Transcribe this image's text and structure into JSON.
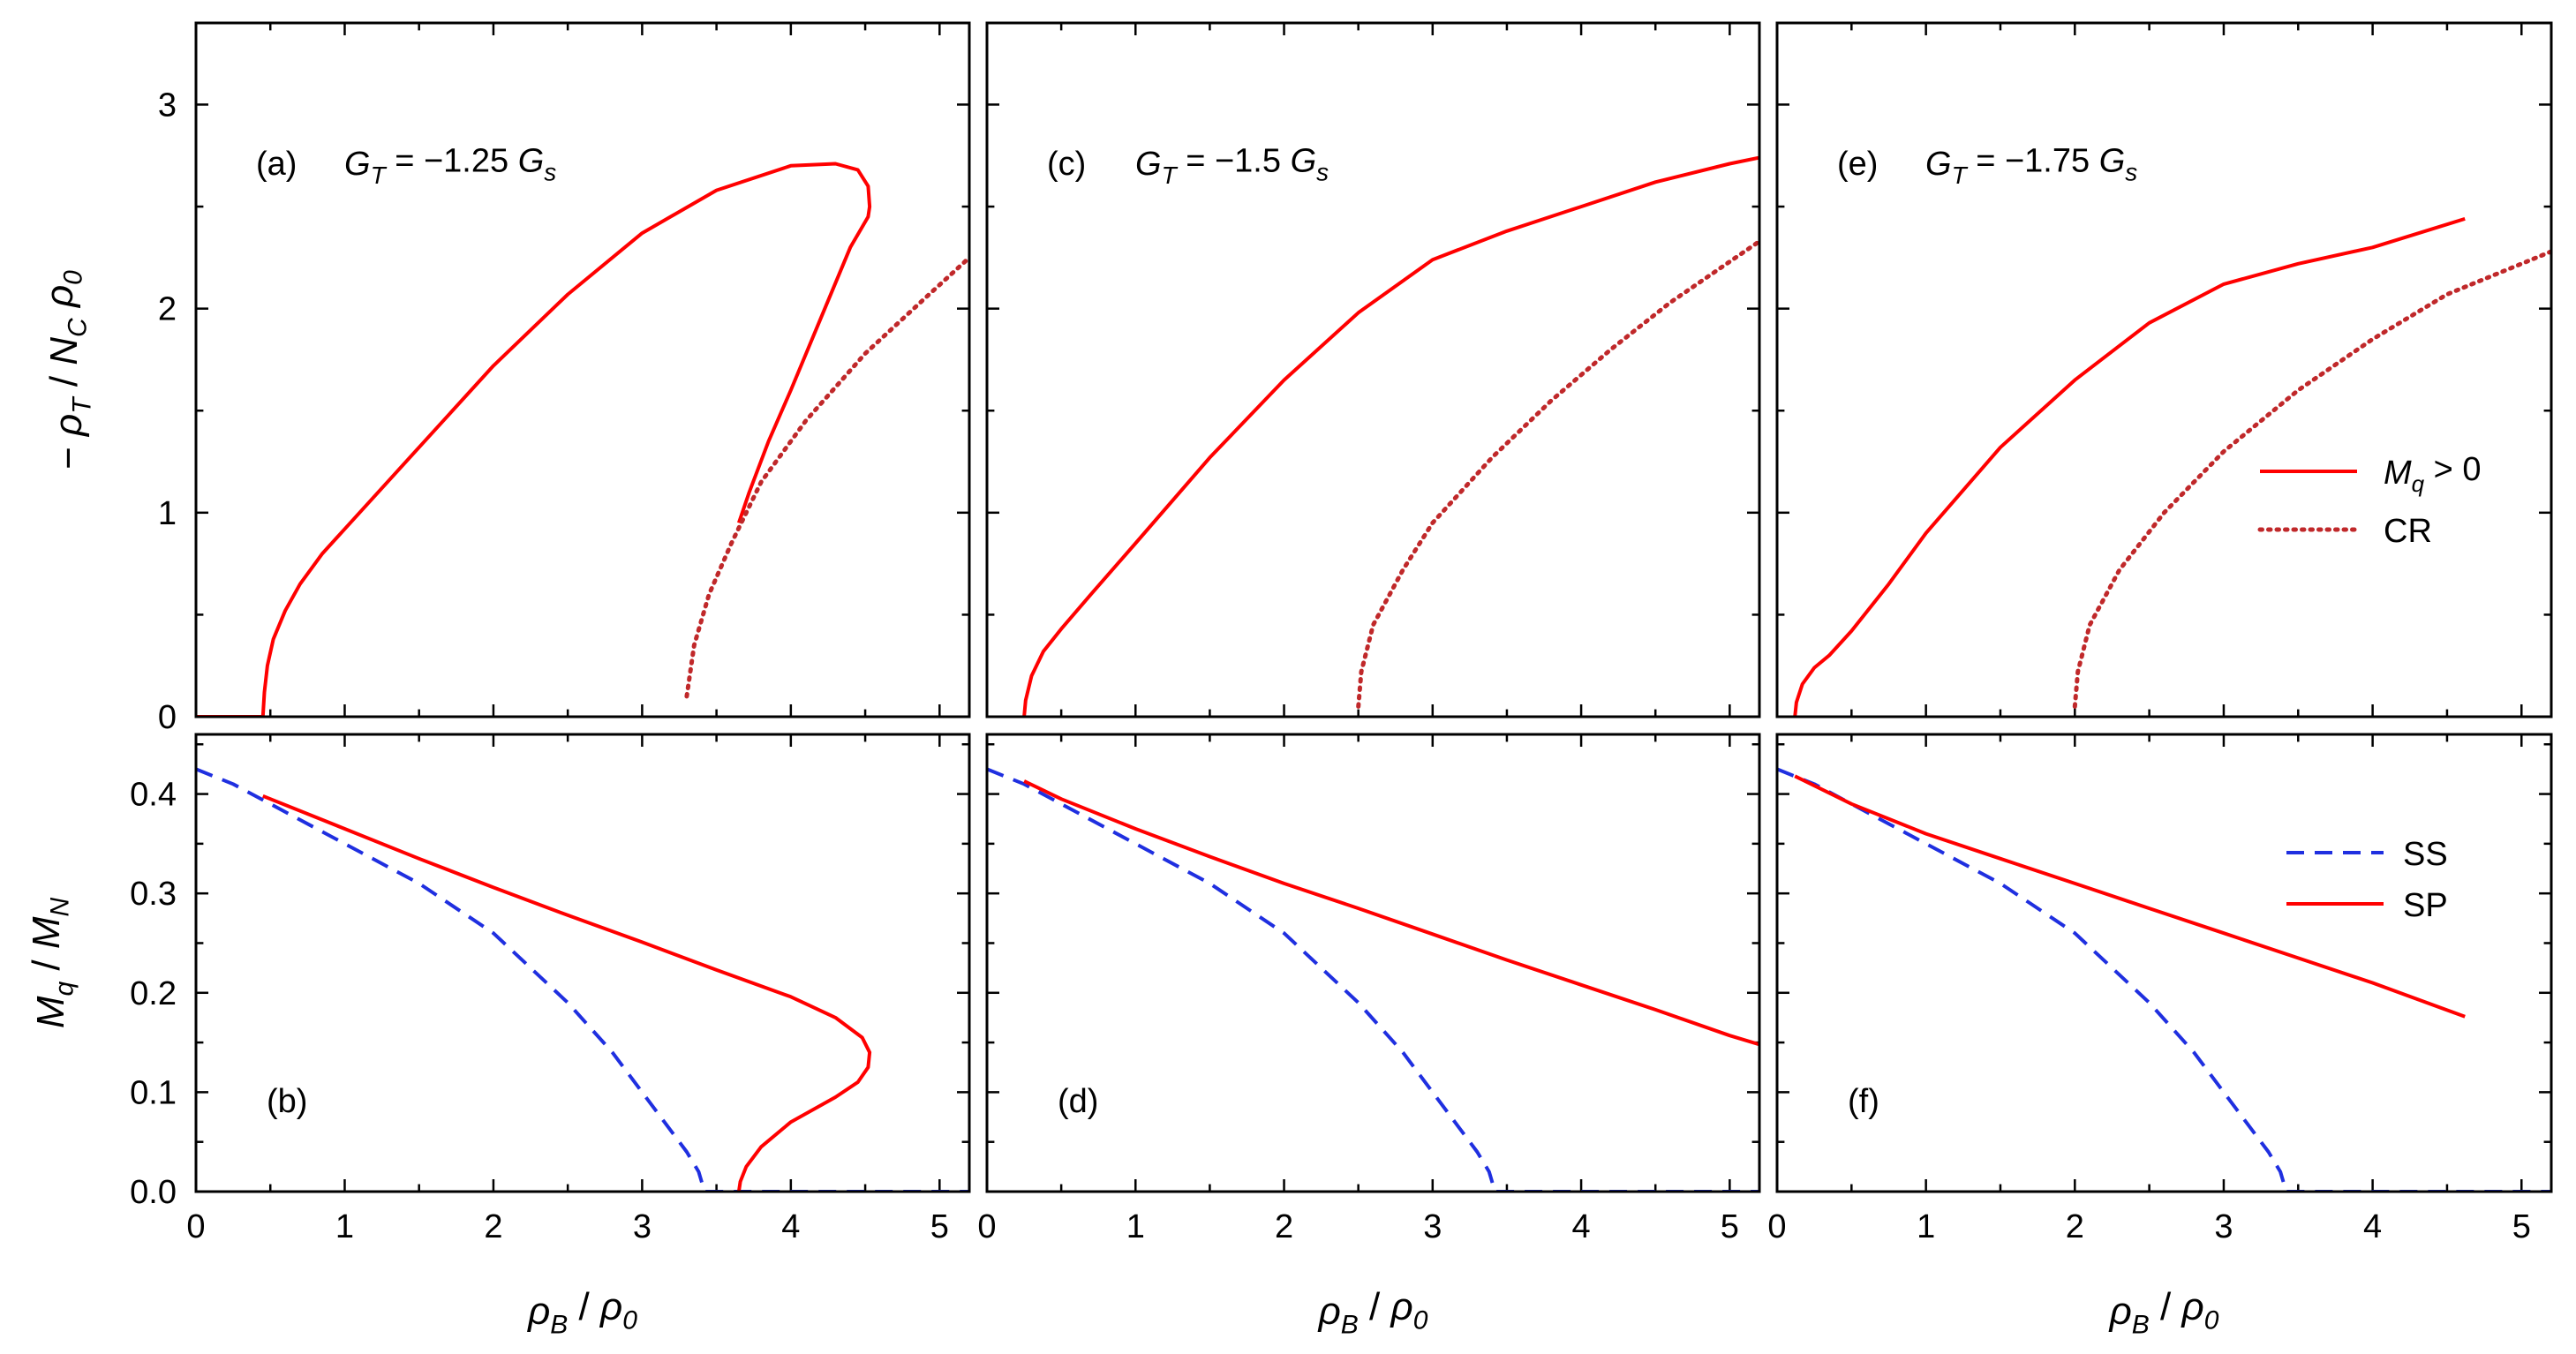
{
  "chart_data": {
    "type": "line",
    "colors": {
      "mq_solid": "#ff0000",
      "cr_dotted": "#c0282a",
      "ss_dashed": "#1f2fe0",
      "sp_solid": "#ff0000"
    },
    "x_axis": {
      "label": "ρB / ρ0",
      "label_parts": {
        "sym": "ρ",
        "sub": "B",
        "sep": " / ",
        "sym2": "ρ",
        "sub2": "0"
      },
      "range": [
        0,
        5.2
      ],
      "ticks": [
        "0",
        "1",
        "2",
        "3",
        "4",
        "5"
      ]
    },
    "top_y_axis": {
      "label": "− ρT / NC ρ0",
      "label_parts": {
        "minus": "− ",
        "sym": "ρ",
        "sub": "T",
        "sep": " / ",
        "sym2": "N",
        "sub2": "C",
        "sym3": " ρ",
        "sub3": "0"
      },
      "range": [
        0,
        3.4
      ],
      "ticks": [
        "0",
        "1",
        "2",
        "3"
      ]
    },
    "bottom_y_axis": {
      "label": "Mq / MN",
      "label_parts": {
        "sym": "M",
        "sub": "q",
        "sep": " / ",
        "sym2": "M",
        "sub2": "N"
      },
      "range": [
        0,
        0.46
      ],
      "ticks": [
        "0.0",
        "0.1",
        "0.2",
        "0.3",
        "0.4"
      ]
    },
    "top_legend": [
      {
        "name": "Mq > 0",
        "sym": "M",
        "sub": "q",
        "rest": " > 0",
        "style": "solid"
      },
      {
        "name": "CR",
        "style": "dotted"
      }
    ],
    "bottom_legend": [
      {
        "name": "SS",
        "style": "dashed"
      },
      {
        "name": "SP",
        "style": "solid"
      }
    ],
    "top_panels": [
      {
        "label": "(a)",
        "title": "GT = −1.25 Gs",
        "title_parts": {
          "sym": "G",
          "sub": "T",
          "eq": " = −1.25 ",
          "sym2": "G",
          "sub2": "s"
        },
        "series": [
          {
            "name": "Mq > 0",
            "style": "solid",
            "x": [
              0,
              0.45,
              0.46,
              0.48,
              0.52,
              0.6,
              0.7,
              0.85,
              1.0,
              1.5,
              2.0,
              2.5,
              3.0,
              3.5,
              4.0,
              4.3,
              4.45,
              4.52,
              4.53,
              4.52,
              4.4,
              4.2,
              4.0,
              3.85,
              3.72,
              3.65
            ],
            "y": [
              0,
              0,
              0.12,
              0.25,
              0.38,
              0.52,
              0.65,
              0.8,
              0.92,
              1.32,
              1.72,
              2.07,
              2.37,
              2.58,
              2.7,
              2.71,
              2.68,
              2.6,
              2.5,
              2.45,
              2.3,
              1.95,
              1.6,
              1.35,
              1.1,
              0.95
            ]
          },
          {
            "name": "CR",
            "style": "dotted",
            "x": [
              3.3,
              3.35,
              3.45,
              3.6,
              3.8,
              4.1,
              4.5,
              4.9,
              5.2
            ],
            "y": [
              0.1,
              0.35,
              0.6,
              0.85,
              1.15,
              1.45,
              1.78,
              2.05,
              2.25
            ]
          }
        ]
      },
      {
        "label": "(c)",
        "title": "GT = −1.5 Gs",
        "title_parts": {
          "sym": "G",
          "sub": "T",
          "eq": " = −1.5 ",
          "sym2": "G",
          "sub2": "s"
        },
        "series": [
          {
            "name": "Mq > 0",
            "style": "solid",
            "x": [
              0.25,
              0.26,
              0.3,
              0.38,
              0.5,
              0.7,
              1.0,
              1.5,
              2.0,
              2.5,
              3.0,
              3.5,
              4.0,
              4.5,
              5.0,
              5.2
            ],
            "y": [
              0,
              0.08,
              0.2,
              0.32,
              0.43,
              0.6,
              0.85,
              1.27,
              1.65,
              1.98,
              2.24,
              2.38,
              2.5,
              2.62,
              2.71,
              2.74
            ]
          },
          {
            "name": "CR",
            "style": "dotted",
            "x": [
              2.5,
              2.52,
              2.6,
              2.8,
              3.0,
              3.4,
              3.8,
              4.2,
              4.6,
              5.0,
              5.2
            ],
            "y": [
              0.05,
              0.22,
              0.45,
              0.72,
              0.95,
              1.27,
              1.55,
              1.8,
              2.03,
              2.23,
              2.33
            ]
          }
        ]
      },
      {
        "label": "(e)",
        "title": "GT = −1.75 Gs",
        "title_parts": {
          "sym": "G",
          "sub": "T",
          "eq": " = −1.75 ",
          "sym2": "G",
          "sub2": "s"
        },
        "series": [
          {
            "name": "Mq > 0",
            "style": "solid",
            "x": [
              0.12,
              0.13,
              0.17,
              0.25,
              0.35,
              0.5,
              0.75,
              1.0,
              1.5,
              2.0,
              2.5,
              3.0,
              3.5,
              4.0,
              4.62
            ],
            "y": [
              0,
              0.07,
              0.16,
              0.24,
              0.3,
              0.42,
              0.65,
              0.9,
              1.32,
              1.65,
              1.93,
              2.12,
              2.22,
              2.3,
              2.44
            ]
          },
          {
            "name": "CR",
            "style": "dotted",
            "x": [
              2.0,
              2.02,
              2.1,
              2.3,
              2.6,
              3.0,
              3.5,
              4.0,
              4.5,
              5.0,
              5.2
            ],
            "y": [
              0.05,
              0.22,
              0.45,
              0.72,
              1.0,
              1.3,
              1.6,
              1.85,
              2.07,
              2.22,
              2.28
            ]
          }
        ]
      }
    ],
    "bottom_panels": [
      {
        "label": "(b)",
        "series": [
          {
            "name": "SS",
            "style": "dashed",
            "x": [
              0,
              0.25,
              0.5,
              1.0,
              1.5,
              2.0,
              2.5,
              2.8,
              3.1,
              3.3,
              3.38,
              3.42,
              3.45,
              4.0,
              5.2
            ],
            "y": [
              0.425,
              0.41,
              0.39,
              0.35,
              0.31,
              0.26,
              0.19,
              0.14,
              0.08,
              0.04,
              0.02,
              0,
              0,
              0,
              0
            ]
          },
          {
            "name": "SP",
            "style": "solid",
            "x": [
              0.45,
              1.0,
              1.5,
              2.0,
              2.5,
              3.0,
              3.5,
              4.0,
              4.3,
              4.48,
              4.53,
              4.52,
              4.45,
              4.3,
              4.0,
              3.8,
              3.7,
              3.66,
              3.65
            ],
            "y": [
              0.398,
              0.365,
              0.335,
              0.306,
              0.278,
              0.251,
              0.223,
              0.196,
              0.175,
              0.155,
              0.14,
              0.125,
              0.11,
              0.095,
              0.07,
              0.045,
              0.025,
              0.01,
              0
            ]
          }
        ]
      },
      {
        "label": "(d)",
        "series": [
          {
            "name": "SS",
            "style": "dashed",
            "x": [
              0,
              0.25,
              0.5,
              1.0,
              1.5,
              2.0,
              2.5,
              2.8,
              3.1,
              3.3,
              3.38,
              3.42,
              3.45,
              4.0,
              5.2
            ],
            "y": [
              0.425,
              0.41,
              0.39,
              0.35,
              0.31,
              0.26,
              0.19,
              0.14,
              0.08,
              0.04,
              0.02,
              0,
              0,
              0,
              0
            ]
          },
          {
            "name": "SP",
            "style": "solid",
            "x": [
              0.25,
              0.5,
              1.0,
              1.5,
              2.0,
              2.5,
              3.0,
              3.5,
              4.0,
              4.5,
              5.0,
              5.2
            ],
            "y": [
              0.413,
              0.395,
              0.365,
              0.337,
              0.31,
              0.285,
              0.259,
              0.233,
              0.208,
              0.183,
              0.157,
              0.148
            ]
          }
        ]
      },
      {
        "label": "(f)",
        "series": [
          {
            "name": "SS",
            "style": "dashed",
            "x": [
              0,
              0.25,
              0.5,
              1.0,
              1.5,
              2.0,
              2.5,
              2.8,
              3.1,
              3.3,
              3.38,
              3.42,
              3.45,
              4.0,
              5.2
            ],
            "y": [
              0.425,
              0.41,
              0.39,
              0.35,
              0.31,
              0.26,
              0.19,
              0.14,
              0.08,
              0.04,
              0.02,
              0,
              0,
              0,
              0
            ]
          },
          {
            "name": "SP",
            "style": "solid",
            "x": [
              0.12,
              0.5,
              1.0,
              1.5,
              2.0,
              2.5,
              3.0,
              3.5,
              4.0,
              4.62
            ],
            "y": [
              0.418,
              0.39,
              0.36,
              0.335,
              0.31,
              0.285,
              0.26,
              0.235,
              0.21,
              0.176
            ]
          }
        ]
      }
    ]
  }
}
